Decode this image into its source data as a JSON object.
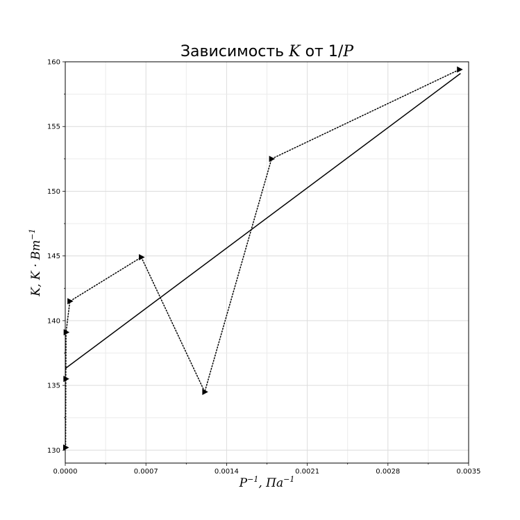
{
  "chart_data": {
    "type": "scatter",
    "title_prefix": "Зависимость",
    "title_var": "K",
    "title_mid": "от 1/",
    "title_var2": "P",
    "xlabel_base": "P",
    "xlabel_exp1": "−1",
    "xlabel_sep": ", Па",
    "xlabel_exp2": "−1",
    "ylabel_base": "K, K · Вт",
    "ylabel_exp": "−1",
    "xlim": [
      0.0,
      0.0035
    ],
    "ylim": [
      129.0,
      160.0
    ],
    "x_ticks": [
      0.0,
      0.0007,
      0.0014,
      0.0021,
      0.0028,
      0.0035
    ],
    "x_tick_labels": [
      "0.0000",
      "0.0007",
      "0.0014",
      "0.0021",
      "0.0028",
      "0.0035"
    ],
    "y_ticks": [
      130,
      135,
      140,
      145,
      150,
      155,
      160
    ],
    "y_tick_labels": [
      "130",
      "135",
      "140",
      "145",
      "150",
      "155",
      "160"
    ],
    "grid": true,
    "series": [
      {
        "style": "dotted-markers",
        "marker": "right-triangle",
        "color": "#000000",
        "x": [
          3e-06,
          5e-06,
          7e-06,
          4e-05,
          0.00066,
          0.00121,
          0.00179,
          0.00342
        ],
        "y": [
          130.2,
          135.5,
          139.1,
          141.5,
          144.9,
          134.5,
          152.5,
          159.4
        ]
      },
      {
        "style": "solid-line",
        "color": "#000000",
        "x": [
          0.0,
          0.00343
        ],
        "y": [
          136.3,
          159.1
        ]
      }
    ]
  }
}
